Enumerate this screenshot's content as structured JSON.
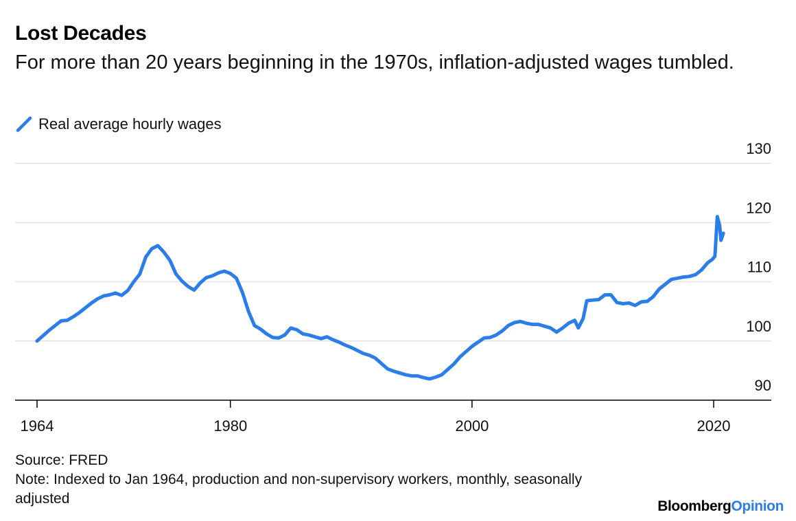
{
  "header": {
    "title": "Lost Decades",
    "subtitle": "For more than 20 years beginning in the 1970s, inflation-adjusted wages tumbled."
  },
  "footer": {
    "source": "Source: FRED",
    "note": "Note: Indexed to Jan 1964, production and non-supervisory workers, monthly, seasonally adjusted",
    "brand_primary": "Bloomberg",
    "brand_secondary": "Opinion"
  },
  "colors": {
    "series": "#2b7de9",
    "gridline": "#e3e3e3",
    "axis": "#000000",
    "brand_accent": "#2b7de9"
  },
  "chart_data": {
    "type": "line",
    "title": "Lost Decades",
    "subtitle": "For more than 20 years beginning in the 1970s, inflation-adjusted wages tumbled.",
    "xlabel": "",
    "ylabel": "",
    "xlim": [
      1964,
      2023
    ],
    "ylim": [
      90,
      130
    ],
    "x_ticks": [
      1964,
      1980,
      2000,
      2020
    ],
    "y_ticks": [
      90,
      100,
      110,
      120,
      130
    ],
    "y_axis_side": "right",
    "grid": "horizontal",
    "legend_position": "top-left",
    "series": [
      {
        "name": "Real average hourly wages",
        "color": "#2b7de9",
        "points": [
          [
            1964.0,
            100.0
          ],
          [
            1964.5,
            100.9
          ],
          [
            1965.0,
            101.8
          ],
          [
            1965.5,
            102.6
          ],
          [
            1966.0,
            103.4
          ],
          [
            1966.5,
            103.5
          ],
          [
            1967.0,
            104.1
          ],
          [
            1967.5,
            104.8
          ],
          [
            1968.0,
            105.6
          ],
          [
            1968.5,
            106.4
          ],
          [
            1969.0,
            107.1
          ],
          [
            1969.5,
            107.6
          ],
          [
            1970.0,
            107.8
          ],
          [
            1970.5,
            108.1
          ],
          [
            1971.0,
            107.7
          ],
          [
            1971.5,
            108.5
          ],
          [
            1972.0,
            110.0
          ],
          [
            1972.5,
            111.3
          ],
          [
            1973.0,
            114.2
          ],
          [
            1973.5,
            115.6
          ],
          [
            1974.0,
            116.1
          ],
          [
            1974.5,
            115.0
          ],
          [
            1975.0,
            113.6
          ],
          [
            1975.5,
            111.3
          ],
          [
            1976.0,
            110.1
          ],
          [
            1976.5,
            109.2
          ],
          [
            1977.0,
            108.6
          ],
          [
            1977.5,
            109.8
          ],
          [
            1978.0,
            110.7
          ],
          [
            1978.5,
            111.0
          ],
          [
            1979.0,
            111.5
          ],
          [
            1979.5,
            111.8
          ],
          [
            1980.0,
            111.4
          ],
          [
            1980.5,
            110.6
          ],
          [
            1981.0,
            108.2
          ],
          [
            1981.5,
            105.0
          ],
          [
            1982.0,
            102.6
          ],
          [
            1982.5,
            102.0
          ],
          [
            1983.0,
            101.2
          ],
          [
            1983.5,
            100.6
          ],
          [
            1984.0,
            100.5
          ],
          [
            1984.5,
            101.0
          ],
          [
            1985.0,
            102.2
          ],
          [
            1985.5,
            101.9
          ],
          [
            1986.0,
            101.2
          ],
          [
            1986.5,
            101.0
          ],
          [
            1987.0,
            100.7
          ],
          [
            1987.5,
            100.4
          ],
          [
            1988.0,
            100.7
          ],
          [
            1988.5,
            100.2
          ],
          [
            1989.0,
            99.8
          ],
          [
            1989.5,
            99.3
          ],
          [
            1990.0,
            98.9
          ],
          [
            1990.5,
            98.4
          ],
          [
            1991.0,
            97.9
          ],
          [
            1991.5,
            97.6
          ],
          [
            1992.0,
            97.1
          ],
          [
            1992.5,
            96.2
          ],
          [
            1993.0,
            95.3
          ],
          [
            1993.5,
            94.9
          ],
          [
            1994.0,
            94.6
          ],
          [
            1994.5,
            94.3
          ],
          [
            1995.0,
            94.1
          ],
          [
            1995.5,
            94.1
          ],
          [
            1996.0,
            93.8
          ],
          [
            1996.5,
            93.6
          ],
          [
            1997.0,
            93.9
          ],
          [
            1997.5,
            94.3
          ],
          [
            1998.0,
            95.2
          ],
          [
            1998.5,
            96.1
          ],
          [
            1999.0,
            97.3
          ],
          [
            1999.5,
            98.2
          ],
          [
            2000.0,
            99.1
          ],
          [
            2000.5,
            99.8
          ],
          [
            2001.0,
            100.5
          ],
          [
            2001.5,
            100.6
          ],
          [
            2002.0,
            101.0
          ],
          [
            2002.5,
            101.7
          ],
          [
            2003.0,
            102.6
          ],
          [
            2003.5,
            103.1
          ],
          [
            2004.0,
            103.3
          ],
          [
            2004.5,
            103.0
          ],
          [
            2005.0,
            102.8
          ],
          [
            2005.5,
            102.8
          ],
          [
            2006.0,
            102.5
          ],
          [
            2006.5,
            102.2
          ],
          [
            2007.0,
            101.5
          ],
          [
            2007.5,
            102.2
          ],
          [
            2008.0,
            103.0
          ],
          [
            2008.5,
            103.5
          ],
          [
            2008.8,
            102.2
          ],
          [
            2009.2,
            103.8
          ],
          [
            2009.5,
            106.8
          ],
          [
            2010.0,
            106.9
          ],
          [
            2010.5,
            107.0
          ],
          [
            2011.0,
            107.8
          ],
          [
            2011.5,
            107.8
          ],
          [
            2012.0,
            106.5
          ],
          [
            2012.5,
            106.3
          ],
          [
            2013.0,
            106.4
          ],
          [
            2013.5,
            106.0
          ],
          [
            2014.0,
            106.6
          ],
          [
            2014.5,
            106.7
          ],
          [
            2015.0,
            107.5
          ],
          [
            2015.5,
            108.8
          ],
          [
            2016.0,
            109.6
          ],
          [
            2016.5,
            110.4
          ],
          [
            2017.0,
            110.6
          ],
          [
            2017.5,
            110.8
          ],
          [
            2018.0,
            110.9
          ],
          [
            2018.5,
            111.2
          ],
          [
            2019.0,
            112.0
          ],
          [
            2019.5,
            113.2
          ],
          [
            2019.9,
            113.8
          ],
          [
            2020.1,
            114.3
          ],
          [
            2020.3,
            121.0
          ],
          [
            2020.5,
            119.5
          ],
          [
            2020.6,
            117.0
          ],
          [
            2020.8,
            118.2
          ]
        ]
      }
    ]
  }
}
